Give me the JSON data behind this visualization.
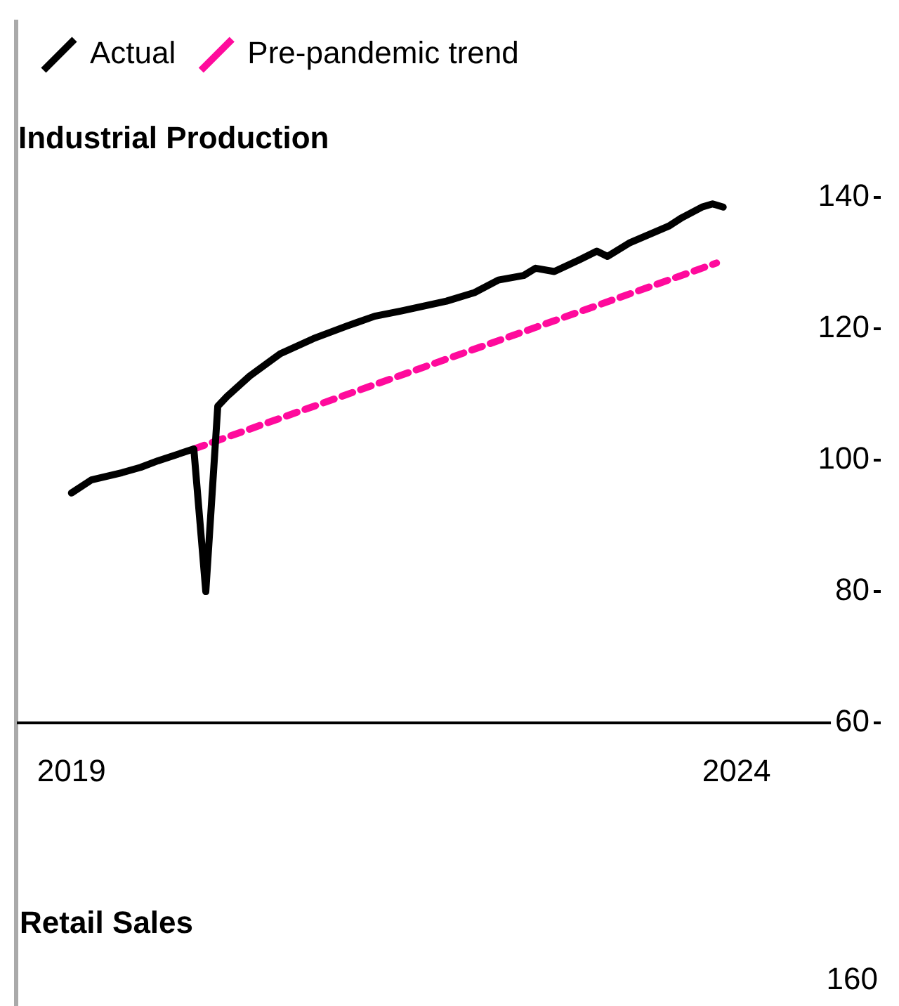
{
  "chart_data": [
    {
      "type": "line",
      "title": "Industrial Production",
      "legend": "top left",
      "xlim": [
        2018.6,
        2025.0
      ],
      "xticks": [
        2019,
        2024
      ],
      "ylim": [
        60,
        140
      ],
      "yticks": [
        60,
        80,
        100,
        120,
        140
      ],
      "series": [
        {
          "name": "Actual",
          "color": "#000000",
          "x": [
            2019.0,
            2019.15,
            2019.38,
            2019.52,
            2019.65,
            2019.92,
            2020.01,
            2020.1,
            2020.17,
            2020.34,
            2020.57,
            2020.82,
            2021.07,
            2021.28,
            2021.48,
            2021.82,
            2022.03,
            2022.21,
            2022.4,
            2022.49,
            2022.63,
            2022.82,
            2022.95,
            2023.03,
            2023.2,
            2023.49,
            2023.59,
            2023.74,
            2023.82,
            2023.9
          ],
          "values": [
            95,
            97,
            98.1,
            98.9,
            99.9,
            101.7,
            80,
            108.2,
            109.7,
            112.8,
            116.2,
            118.5,
            120.4,
            121.9,
            122.7,
            124.2,
            125.5,
            127.4,
            128.1,
            129.2,
            128.7,
            130.5,
            131.8,
            131,
            133.1,
            135.6,
            136.9,
            138.5,
            139,
            138.5
          ]
        },
        {
          "name": "Pre-pandemic trend",
          "color": "#ff0a9c",
          "line_style": "dashed",
          "x": [
            2019.92,
            2023.85
          ],
          "values": [
            101.7,
            130
          ]
        }
      ]
    },
    {
      "type": "other",
      "title": "Retail Sales",
      "annotations": [
        "160"
      ]
    }
  ]
}
